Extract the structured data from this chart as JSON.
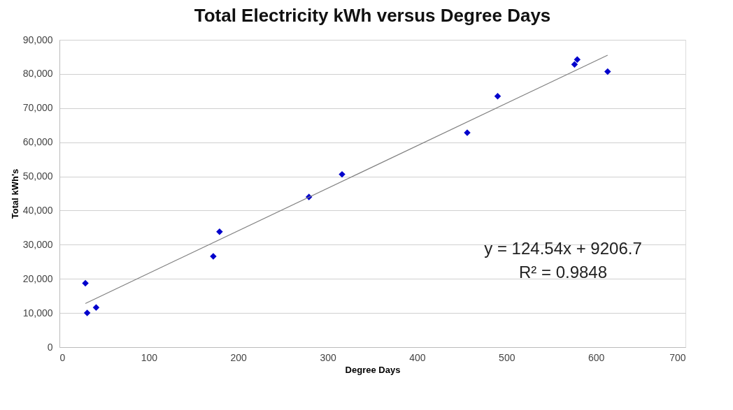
{
  "chart_data": {
    "type": "scatter",
    "title": "Total Electricity kWh versus Degree Days",
    "xlabel": "Degree Days",
    "ylabel": "Total kWh's",
    "series": [
      {
        "color": "#0000cc",
        "marker": "diamond",
        "x": [
          29,
          31,
          41,
          172,
          179,
          279,
          316,
          456,
          490,
          576,
          579,
          613
        ],
        "values": [
          18700,
          10000,
          11600,
          26600,
          33800,
          44000,
          50600,
          62800,
          73500,
          82800,
          84200,
          80700
        ]
      },
      {
        "type": "line",
        "color": "#808080",
        "line_style": "solid",
        "x": [
          29,
          613
        ],
        "values": [
          12800,
          85500
        ]
      }
    ],
    "xlim": [
      0,
      700
    ],
    "xticks": [
      0,
      100,
      200,
      300,
      400,
      500,
      600,
      700
    ],
    "ylim": [
      0,
      90000
    ],
    "yticks": [
      {
        "value": 0,
        "label": "0"
      },
      {
        "value": 10000,
        "label": "10,000"
      },
      {
        "value": 20000,
        "label": "20,000"
      },
      {
        "value": 30000,
        "label": "30,000"
      },
      {
        "value": 40000,
        "label": "40,000"
      },
      {
        "value": 50000,
        "label": "50,000"
      },
      {
        "value": 60000,
        "label": "60,000"
      },
      {
        "value": 70000,
        "label": "70,000"
      },
      {
        "value": 80000,
        "label": "80,000"
      },
      {
        "value": 90000,
        "label": "90,000"
      }
    ],
    "grid": "y",
    "annotations": [
      "y = 124.54x + 9206.7",
      "R² = 0.9848"
    ]
  }
}
